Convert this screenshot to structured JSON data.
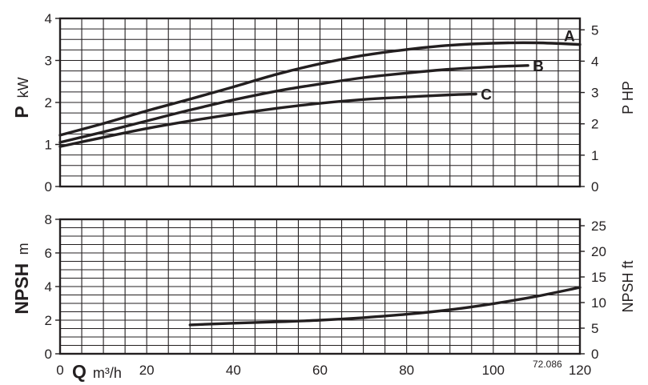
{
  "chart_data": [
    {
      "type": "line",
      "panel": "power",
      "ylabel_left_main": "P",
      "ylabel_left_unit": "kW",
      "ylabel_right": "P HP",
      "xlim": [
        0,
        120
      ],
      "ylim": [
        0,
        4
      ],
      "yticks": [
        "0",
        "1",
        "2",
        "3",
        "4"
      ],
      "y2lim": [
        0,
        5.364
      ],
      "y2ticks": [
        "0",
        "1",
        "2",
        "3",
        "4",
        "5"
      ],
      "grid": true,
      "series": [
        {
          "name": "A",
          "x": [
            0,
            10,
            20,
            30,
            40,
            50,
            60,
            70,
            80,
            90,
            100,
            110,
            120
          ],
          "values": [
            1.22,
            1.5,
            1.8,
            2.08,
            2.37,
            2.67,
            2.92,
            3.12,
            3.26,
            3.36,
            3.41,
            3.42,
            3.38
          ]
        },
        {
          "name": "B",
          "x": [
            0,
            10,
            20,
            30,
            40,
            50,
            60,
            70,
            80,
            90,
            100,
            108
          ],
          "values": [
            1.05,
            1.3,
            1.56,
            1.82,
            2.06,
            2.27,
            2.44,
            2.59,
            2.7,
            2.79,
            2.85,
            2.88
          ]
        },
        {
          "name": "C",
          "x": [
            0,
            10,
            20,
            30,
            40,
            50,
            60,
            70,
            80,
            90,
            96
          ],
          "values": [
            0.95,
            1.17,
            1.38,
            1.56,
            1.72,
            1.86,
            1.98,
            2.07,
            2.13,
            2.18,
            2.2
          ]
        }
      ]
    },
    {
      "type": "line",
      "panel": "npsh",
      "ylabel_left_main": "NPSH",
      "ylabel_left_unit": "m",
      "ylabel_right": "NPSH ft",
      "xlabel_main": "Q",
      "xlabel_unit": "m³/h",
      "xlim": [
        0,
        120
      ],
      "xticks": [
        "0",
        "20",
        "40",
        "60",
        "80",
        "100",
        "120"
      ],
      "ylim": [
        0,
        8
      ],
      "yticks": [
        "0",
        "2",
        "4",
        "6",
        "8"
      ],
      "y2lim": [
        0,
        26.25
      ],
      "y2ticks": [
        "0",
        "5",
        "10",
        "15",
        "20",
        "25"
      ],
      "grid": true,
      "series": [
        {
          "x": [
            30,
            40,
            50,
            60,
            70,
            80,
            90,
            100,
            110,
            120
          ],
          "values": [
            1.72,
            1.82,
            1.9,
            2.0,
            2.15,
            2.35,
            2.62,
            2.98,
            3.42,
            3.95
          ]
        }
      ]
    }
  ],
  "reference_code": "72.086"
}
